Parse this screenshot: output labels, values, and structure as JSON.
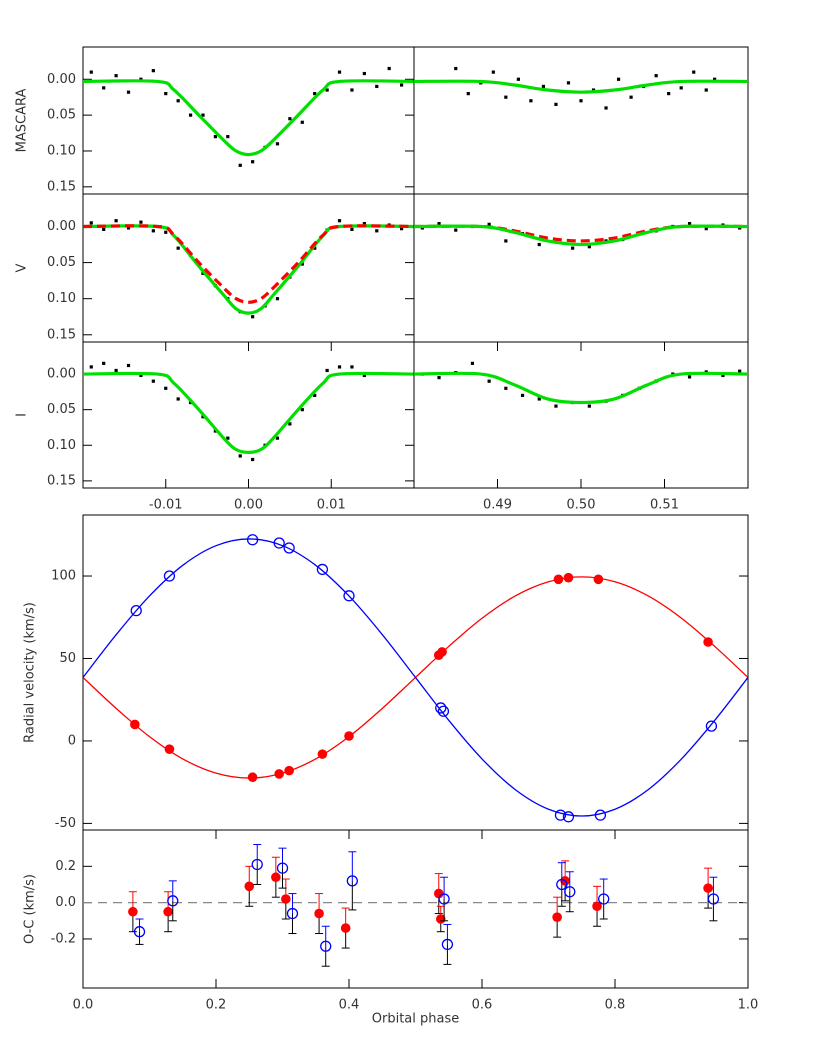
{
  "chart_data": [
    {
      "type": "scatter",
      "ylabel": "MASCARA",
      "xlim": [
        -0.02,
        0.02
      ],
      "ylim": [
        0.16,
        -0.045
      ],
      "yticks": [
        {
          "value": 0,
          "label": "0.00"
        },
        0.05,
        {
          "value": 0.1,
          "label": "0.10"
        },
        {
          "value": 0.15,
          "label": "0.15"
        }
      ],
      "series": [
        {
          "type": "scatter",
          "marker": "square",
          "color": "#000000",
          "x": [
            -0.019,
            -0.0175,
            -0.016,
            -0.0145,
            -0.013,
            -0.0115,
            -0.01,
            -0.0085,
            -0.007,
            -0.0055,
            -0.004,
            -0.0025,
            -0.001,
            0.0005,
            0.002,
            0.0035,
            0.005,
            0.0065,
            0.008,
            0.0095,
            0.011,
            0.0125,
            0.014,
            0.0155,
            0.017,
            0.0185
          ],
          "values": [
            -0.01,
            0.012,
            -0.005,
            0.018,
            0.0,
            -0.012,
            0.02,
            0.03,
            0.05,
            0.05,
            0.08,
            0.08,
            0.12,
            0.115,
            0.095,
            0.09,
            0.055,
            0.06,
            0.02,
            0.015,
            -0.01,
            0.015,
            -0.008,
            0.01,
            -0.015,
            0.008
          ]
        },
        {
          "type": "line",
          "style": "solid",
          "color": "#00e000",
          "x": [
            -0.02,
            -0.011,
            -0.009,
            -0.006,
            -0.003,
            -0.0015,
            0,
            0.0015,
            0.003,
            0.006,
            0.009,
            0.011,
            0.02
          ],
          "values": [
            0.003,
            0.003,
            0.015,
            0.05,
            0.085,
            0.1,
            0.105,
            0.1,
            0.085,
            0.05,
            0.015,
            0.003,
            0.003
          ]
        }
      ]
    },
    {
      "type": "scatter",
      "xlim": [
        0.48,
        0.52
      ],
      "ylim": [
        0.16,
        -0.045
      ],
      "series": [
        {
          "type": "scatter",
          "marker": "square",
          "color": "#000000",
          "x": [
            0.485,
            0.4865,
            0.488,
            0.4895,
            0.491,
            0.4925,
            0.494,
            0.4955,
            0.497,
            0.4985,
            0.5,
            0.5015,
            0.503,
            0.5045,
            0.506,
            0.5075,
            0.509,
            0.5105,
            0.512,
            0.5135,
            0.515,
            0.516
          ],
          "values": [
            -0.015,
            0.02,
            0.005,
            -0.01,
            0.025,
            0.0,
            0.03,
            0.01,
            0.035,
            0.005,
            0.03,
            0.015,
            0.04,
            0.0,
            0.025,
            0.01,
            -0.005,
            0.02,
            0.012,
            -0.01,
            0.015,
            0.0
          ]
        },
        {
          "type": "line",
          "style": "solid",
          "color": "#00e000",
          "x": [
            0.48,
            0.488,
            0.492,
            0.496,
            0.5,
            0.504,
            0.508,
            0.512,
            0.52
          ],
          "values": [
            0.003,
            0.003,
            0.008,
            0.015,
            0.018,
            0.015,
            0.008,
            0.003,
            0.003
          ]
        }
      ]
    },
    {
      "type": "scatter",
      "ylabel": "V",
      "xlim": [
        -0.02,
        0.02
      ],
      "ylim": [
        0.16,
        -0.045
      ],
      "yticks": [
        {
          "value": 0,
          "label": "0.00"
        },
        0.05,
        {
          "value": 0.1,
          "label": "0.10"
        },
        {
          "value": 0.15,
          "label": "0.15"
        }
      ],
      "series": [
        {
          "type": "scatter",
          "marker": "square",
          "color": "#000000",
          "x": [
            -0.019,
            -0.0175,
            -0.016,
            -0.0145,
            -0.013,
            -0.0115,
            -0.01,
            -0.0085,
            -0.007,
            -0.0055,
            -0.004,
            -0.0025,
            -0.001,
            0.0005,
            0.002,
            0.0035,
            0.005,
            0.0065,
            0.008,
            0.0095,
            0.011,
            0.0125,
            0.014,
            0.0155,
            0.017,
            0.0185
          ],
          "values": [
            -0.005,
            0.004,
            -0.008,
            0.002,
            -0.006,
            0.006,
            0.008,
            0.03,
            0.04,
            0.065,
            0.082,
            0.1,
            0.118,
            0.125,
            0.11,
            0.1,
            0.07,
            0.052,
            0.03,
            0.005,
            -0.008,
            0.004,
            -0.004,
            0.006,
            -0.002,
            0.003
          ]
        },
        {
          "type": "line",
          "style": "solid",
          "color": "#00e000",
          "x": [
            -0.02,
            -0.011,
            -0.009,
            -0.006,
            -0.003,
            -0.0015,
            0,
            0.0015,
            0.003,
            0.006,
            0.009,
            0.011,
            0.02
          ],
          "values": [
            0,
            0,
            0.013,
            0.055,
            0.095,
            0.114,
            0.12,
            0.114,
            0.095,
            0.055,
            0.013,
            0,
            0
          ]
        },
        {
          "type": "line",
          "style": "dashed",
          "color": "#ff0000",
          "x": [
            -0.02,
            -0.011,
            -0.009,
            -0.006,
            -0.003,
            -0.0015,
            0,
            0.0015,
            0.003,
            0.006,
            0.009,
            0.011,
            0.02
          ],
          "values": [
            0,
            0,
            0.012,
            0.05,
            0.085,
            0.1,
            0.105,
            0.1,
            0.085,
            0.05,
            0.012,
            0,
            0
          ]
        }
      ]
    },
    {
      "type": "scatter",
      "xlim": [
        0.48,
        0.52
      ],
      "ylim": [
        0.16,
        -0.045
      ],
      "series": [
        {
          "type": "scatter",
          "marker": "square",
          "color": "#000000",
          "x": [
            0.481,
            0.483,
            0.485,
            0.487,
            0.489,
            0.491,
            0.493,
            0.495,
            0.497,
            0.499,
            0.501,
            0.503,
            0.505,
            0.507,
            0.509,
            0.511,
            0.513,
            0.515,
            0.517,
            0.519
          ],
          "values": [
            0.002,
            -0.004,
            0.005,
            0.0,
            -0.003,
            0.02,
            0.01,
            0.025,
            0.02,
            0.03,
            0.028,
            0.02,
            0.018,
            0.01,
            0.006,
            0.0,
            -0.004,
            0.003,
            -0.002,
            0.002
          ]
        },
        {
          "type": "line",
          "style": "dashed",
          "color": "#ff0000",
          "x": [
            0.48,
            0.488,
            0.492,
            0.496,
            0.5,
            0.504,
            0.508,
            0.512,
            0.52
          ],
          "values": [
            0,
            0,
            0.006,
            0.016,
            0.02,
            0.016,
            0.006,
            0,
            0
          ]
        },
        {
          "type": "line",
          "style": "solid",
          "color": "#00e000",
          "x": [
            0.48,
            0.488,
            0.492,
            0.496,
            0.5,
            0.504,
            0.508,
            0.512,
            0.52
          ],
          "values": [
            0,
            0,
            0.008,
            0.02,
            0.025,
            0.02,
            0.008,
            0,
            0
          ]
        }
      ]
    },
    {
      "type": "scatter",
      "ylabel": "I",
      "xlim": [
        -0.02,
        0.02
      ],
      "ylim": [
        0.16,
        -0.045
      ],
      "yticks": [
        {
          "value": 0,
          "label": "0.00"
        },
        0.05,
        {
          "value": 0.1,
          "label": "0.10"
        },
        {
          "value": 0.15,
          "label": "0.15"
        }
      ],
      "xticks": [
        -0.01,
        {
          "value": 0,
          "label": "0.00"
        },
        0.01
      ],
      "series": [
        {
          "type": "scatter",
          "marker": "square",
          "color": "#000000",
          "x": [
            -0.019,
            -0.0175,
            -0.016,
            -0.0145,
            -0.013,
            -0.0115,
            -0.01,
            -0.0085,
            -0.007,
            -0.0055,
            -0.004,
            -0.0025,
            -0.001,
            0.0005,
            0.002,
            0.0035,
            0.005,
            0.0065,
            0.008,
            0.0095,
            0.011,
            0.0125,
            0.014
          ],
          "values": [
            -0.01,
            -0.015,
            -0.005,
            -0.012,
            0.002,
            0.01,
            0.02,
            0.035,
            0.04,
            0.06,
            0.08,
            0.09,
            0.115,
            0.12,
            0.1,
            0.09,
            0.07,
            0.05,
            0.03,
            -0.005,
            -0.01,
            -0.01,
            0.002
          ]
        },
        {
          "type": "line",
          "style": "solid",
          "color": "#00e000",
          "x": [
            -0.02,
            -0.011,
            -0.009,
            -0.006,
            -0.003,
            -0.0015,
            0,
            0.0015,
            0.003,
            0.006,
            0.009,
            0.011,
            0.02
          ],
          "values": [
            0,
            0,
            0.013,
            0.05,
            0.09,
            0.106,
            0.11,
            0.106,
            0.09,
            0.05,
            0.013,
            0,
            0
          ]
        }
      ]
    },
    {
      "type": "scatter",
      "xlim": [
        0.48,
        0.52
      ],
      "ylim": [
        0.16,
        -0.045
      ],
      "xticks": [
        0.49,
        {
          "value": 0.5,
          "label": "0.50"
        },
        0.51
      ],
      "series": [
        {
          "type": "scatter",
          "marker": "square",
          "color": "#000000",
          "x": [
            0.481,
            0.483,
            0.485,
            0.487,
            0.489,
            0.491,
            0.493,
            0.495,
            0.497,
            0.499,
            0.501,
            0.503,
            0.505,
            0.507,
            0.509,
            0.511,
            0.513,
            0.515,
            0.517,
            0.519
          ],
          "values": [
            0.0,
            0.005,
            -0.002,
            -0.015,
            0.01,
            0.02,
            0.03,
            0.035,
            0.045,
            0.04,
            0.045,
            0.038,
            0.03,
            0.02,
            0.01,
            0.0,
            0.004,
            -0.003,
            0.002,
            -0.004
          ]
        },
        {
          "type": "line",
          "style": "solid",
          "color": "#00e000",
          "x": [
            0.48,
            0.488,
            0.492,
            0.496,
            0.5,
            0.504,
            0.508,
            0.512,
            0.52
          ],
          "values": [
            0,
            0,
            0.015,
            0.035,
            0.04,
            0.035,
            0.015,
            0,
            0
          ]
        }
      ]
    },
    {
      "type": "scatter",
      "ylabel": "Radial velocity (km/s)",
      "xlim": [
        0,
        1
      ],
      "ylim": [
        -54,
        137
      ],
      "yticks": [
        -50,
        0,
        50,
        100
      ],
      "series": [
        {
          "type": "line",
          "style": "solid",
          "color": "#ff0000",
          "x": [
            0,
            0.05,
            0.1,
            0.15,
            0.2,
            0.25,
            0.3,
            0.35,
            0.4,
            0.45,
            0.5,
            0.55,
            0.6,
            0.65,
            0.7,
            0.75,
            0.8,
            0.85,
            0.9,
            0.95,
            1
          ],
          "values": [
            38.5,
            19.7,
            2.6,
            -10.9,
            -19.5,
            -22.5,
            -19.5,
            -10.9,
            2.6,
            19.7,
            38.5,
            57.3,
            74.4,
            87.9,
            96.5,
            99.5,
            96.5,
            87.9,
            74.4,
            57.3,
            38.5
          ]
        },
        {
          "type": "line",
          "style": "solid",
          "color": "#0000ff",
          "x": [
            0,
            0.05,
            0.1,
            0.15,
            0.2,
            0.25,
            0.3,
            0.35,
            0.4,
            0.45,
            0.5,
            0.55,
            0.6,
            0.65,
            0.7,
            0.75,
            0.8,
            0.85,
            0.9,
            0.95,
            1
          ],
          "values": [
            38.5,
            64.5,
            87.9,
            106.5,
            118.4,
            122.5,
            118.4,
            106.5,
            87.9,
            64.5,
            38.5,
            12.5,
            -10.9,
            -29.5,
            -41.4,
            -45.5,
            -41.4,
            -29.5,
            -10.9,
            12.5,
            38.5
          ]
        },
        {
          "type": "scatter",
          "marker": "filled-circle",
          "color": "#ff0000",
          "x": [
            0.078,
            0.13,
            0.255,
            0.295,
            0.31,
            0.36,
            0.4,
            0.535,
            0.54,
            0.715,
            0.73,
            0.775,
            0.94
          ],
          "values": [
            10,
            -5,
            -22,
            -20,
            -18,
            -8,
            3,
            52,
            54,
            98,
            99,
            98,
            60
          ]
        },
        {
          "type": "scatter",
          "marker": "open-circle",
          "color": "#0000ff",
          "x": [
            0.08,
            0.13,
            0.255,
            0.295,
            0.31,
            0.36,
            0.4,
            0.538,
            0.542,
            0.718,
            0.73,
            0.778,
            0.945
          ],
          "values": [
            79,
            100,
            122,
            120,
            117,
            104,
            88,
            20,
            18,
            -45,
            -46,
            -45,
            9
          ]
        }
      ]
    },
    {
      "type": "errorbar",
      "ylabel": "O-C (km/s)",
      "xlabel": "Orbital phase",
      "xlim": [
        0,
        1
      ],
      "ylim": [
        -0.47,
        0.4
      ],
      "yticks": [
        -0.2,
        {
          "value": 0,
          "label": "0.0"
        },
        0.2
      ],
      "xticks": [
        {
          "value": 0,
          "label": "0.0"
        },
        0.2,
        0.4,
        0.6,
        0.8,
        {
          "value": 1,
          "label": "1.0"
        }
      ],
      "hline": {
        "value": 0,
        "style": "dashed",
        "color": "#888888"
      },
      "series": [
        {
          "type": "errorbar",
          "marker": "filled-circle",
          "color": "#ff0000",
          "x": [
            0.075,
            0.128,
            0.25,
            0.29,
            0.305,
            0.355,
            0.395,
            0.535,
            0.538,
            0.713,
            0.725,
            0.773,
            0.94
          ],
          "values": [
            -0.05,
            -0.05,
            0.09,
            0.14,
            0.02,
            -0.06,
            -0.14,
            0.05,
            -0.09,
            -0.08,
            0.12,
            -0.02,
            0.08
          ],
          "errors": [
            0.11,
            0.11,
            0.11,
            0.11,
            0.11,
            0.11,
            0.11,
            0.11,
            0.07,
            0.11,
            0.11,
            0.11,
            0.11
          ]
        },
        {
          "type": "errorbar",
          "marker": "open-circle",
          "color": "#0000ff",
          "x": [
            0.085,
            0.135,
            0.262,
            0.3,
            0.315,
            0.365,
            0.405,
            0.543,
            0.548,
            0.72,
            0.732,
            0.783,
            0.948
          ],
          "values": [
            -0.16,
            0.01,
            0.21,
            0.19,
            -0.06,
            -0.24,
            0.12,
            0.02,
            -0.23,
            0.1,
            0.06,
            0.02,
            0.02
          ],
          "errors": [
            0.07,
            0.11,
            0.11,
            0.11,
            0.11,
            0.11,
            0.16,
            0.12,
            0.11,
            0.12,
            0.11,
            0.11,
            0.12
          ]
        }
      ]
    }
  ]
}
